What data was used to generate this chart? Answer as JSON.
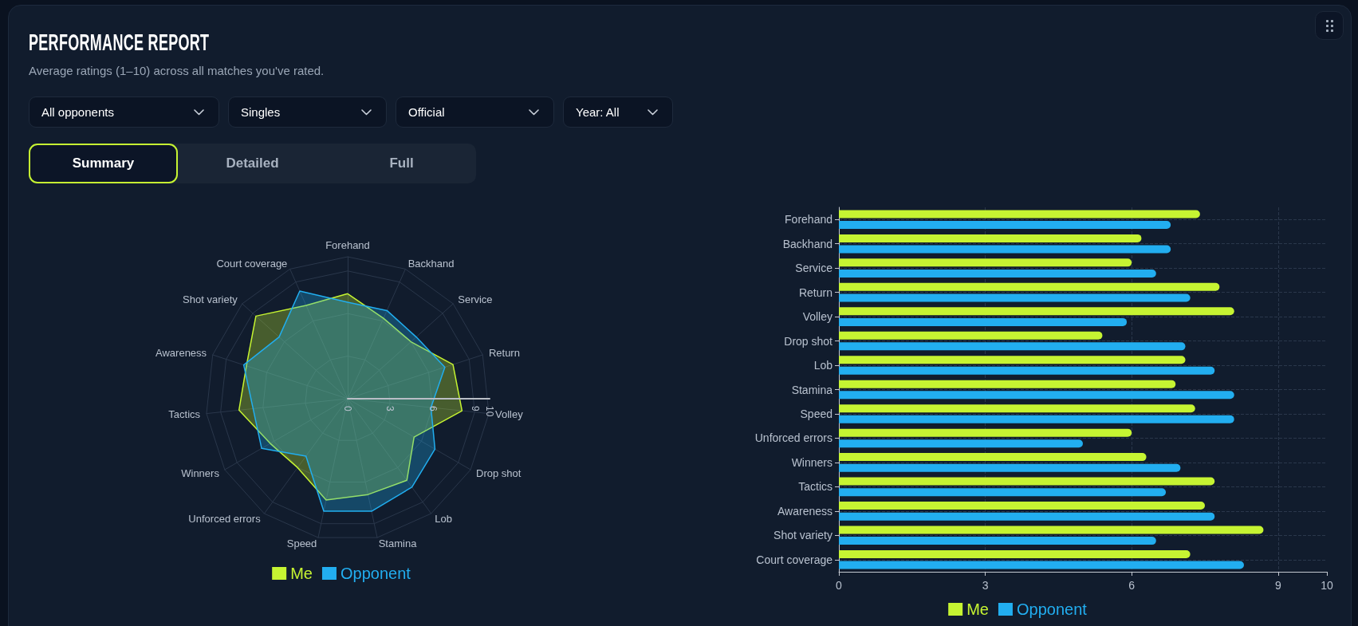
{
  "chart_data": [
    {
      "type": "radar",
      "title": "PERFORMANCE REPORT",
      "subtitle": "Average ratings (1–10) across all matches you've rated.",
      "annotations": [
        "All opponents",
        "Singles",
        "Official",
        "Year: All",
        "Summary",
        "Detailed",
        "Full"
      ],
      "categories": [
        "Forehand",
        "Backhand",
        "Service",
        "Return",
        "Volley",
        "Drop shot",
        "Lob",
        "Stamina",
        "Speed",
        "Unforced errors",
        "Winners",
        "Tactics",
        "Awareness",
        "Shot variety",
        "Court coverage"
      ],
      "series": [
        {
          "name": "Me",
          "color": "#c6f432",
          "values": [
            7.4,
            6.2,
            6.0,
            7.8,
            8.1,
            5.4,
            7.1,
            6.9,
            7.3,
            6.0,
            6.3,
            7.7,
            7.5,
            8.7,
            7.2
          ]
        },
        {
          "name": "Opponent",
          "color": "#22aef0",
          "values": [
            6.8,
            6.8,
            6.5,
            7.2,
            5.9,
            7.1,
            7.7,
            8.1,
            8.1,
            5.0,
            7.0,
            6.7,
            7.7,
            6.5,
            8.3
          ]
        }
      ],
      "ylim": [
        0,
        10
      ],
      "yticks": [
        0,
        3,
        6,
        9,
        10
      ],
      "grid": true,
      "legend": "bottom"
    },
    {
      "type": "bar",
      "orientation": "horizontal",
      "categories": [
        "Forehand",
        "Backhand",
        "Service",
        "Return",
        "Volley",
        "Drop shot",
        "Lob",
        "Stamina",
        "Speed",
        "Unforced errors",
        "Winners",
        "Tactics",
        "Awareness",
        "Shot variety",
        "Court coverage"
      ],
      "series": [
        {
          "name": "Me",
          "color": "#c6f432",
          "values": [
            7.4,
            6.2,
            6.0,
            7.8,
            8.1,
            5.4,
            7.1,
            6.9,
            7.3,
            6.0,
            6.3,
            7.7,
            7.5,
            8.7,
            7.2
          ]
        },
        {
          "name": "Opponent",
          "color": "#22aef0",
          "values": [
            6.8,
            6.8,
            6.5,
            7.2,
            5.9,
            7.1,
            7.7,
            8.1,
            8.1,
            5.0,
            7.0,
            6.7,
            7.7,
            6.5,
            8.3
          ]
        }
      ],
      "xlim": [
        0,
        10
      ],
      "xticks": [
        0,
        3,
        6,
        9,
        10
      ],
      "grid": true,
      "legend": "bottom"
    }
  ]
}
